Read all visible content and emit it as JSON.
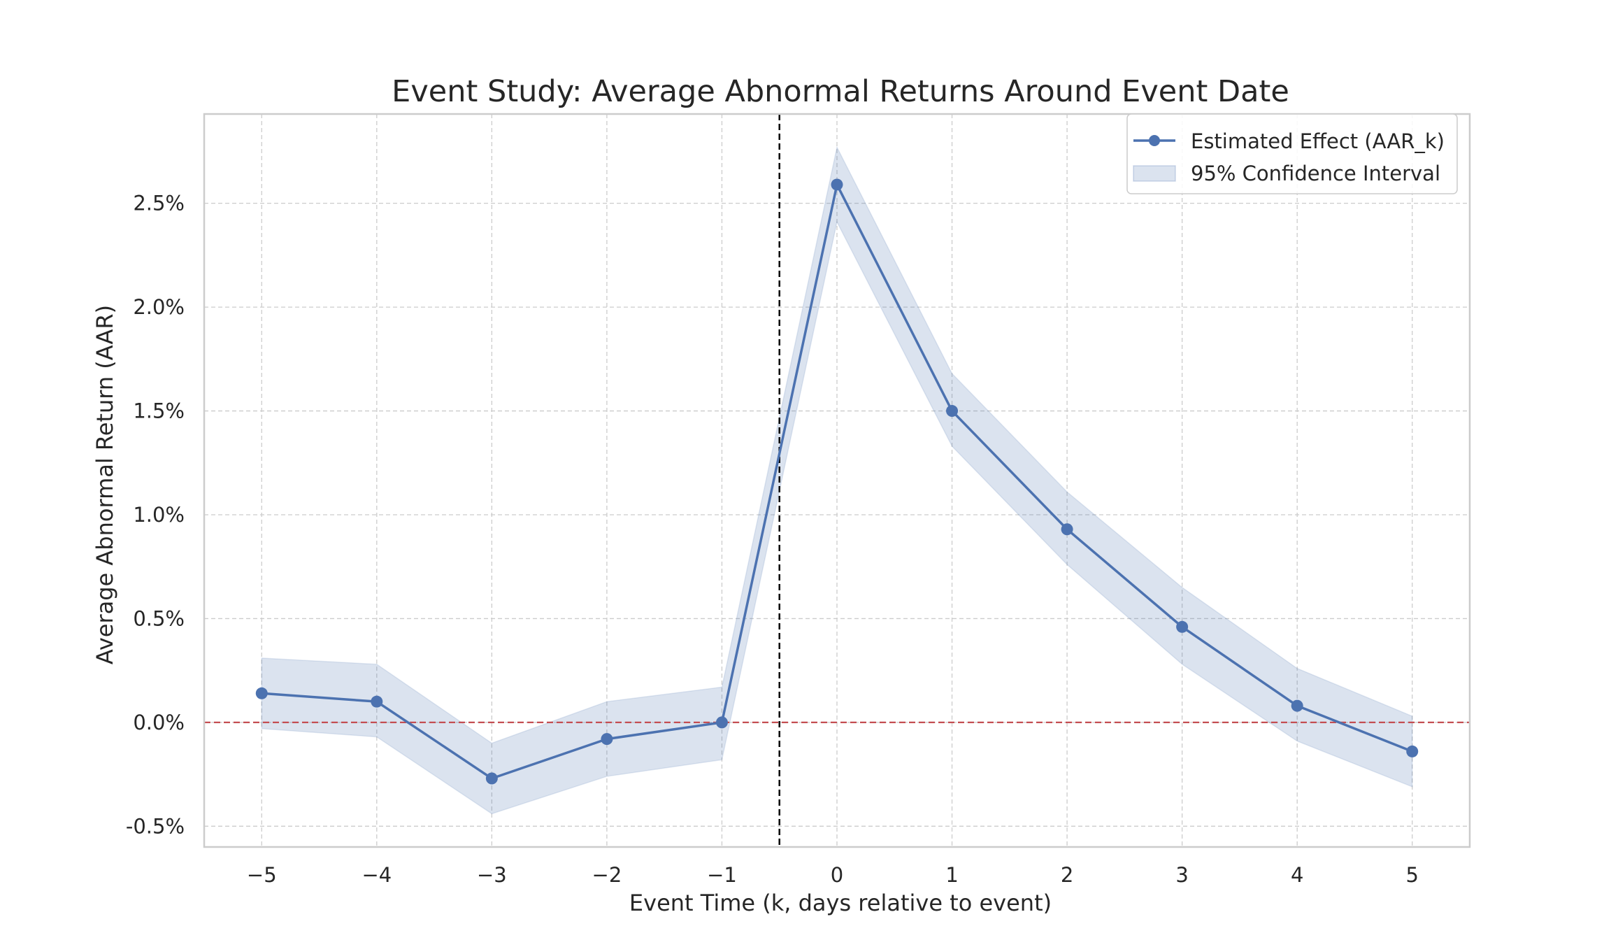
{
  "chart_data": {
    "type": "line",
    "title": "Event Study: Average Abnormal Returns Around Event Date",
    "xlabel": "Event Time (k, days relative to event)",
    "ylabel": "Average Abnormal Return (AAR)",
    "x": [
      -5,
      -4,
      -3,
      -2,
      -1,
      0,
      1,
      2,
      3,
      4,
      5
    ],
    "x_tick_labels": [
      "−5",
      "−4",
      "−3",
      "−2",
      "−1",
      "0",
      "1",
      "2",
      "3",
      "4",
      "5"
    ],
    "y_ticks": [
      -0.5,
      0.0,
      0.5,
      1.0,
      1.5,
      2.0,
      2.5
    ],
    "y_tick_labels": [
      "-0.5%",
      "0.0%",
      "0.5%",
      "1.0%",
      "1.5%",
      "2.0%",
      "2.5%"
    ],
    "xlim": [
      -5.5,
      5.5
    ],
    "ylim": [
      -0.6,
      2.93
    ],
    "y_unit": "percent",
    "series": [
      {
        "name": "Estimated Effect (AAR_k)",
        "values": [
          0.14,
          0.1,
          -0.27,
          -0.08,
          0.0,
          2.59,
          1.5,
          0.93,
          0.46,
          0.08,
          -0.14
        ],
        "color": "#4c72b0",
        "marker": "circle"
      }
    ],
    "confidence_band": {
      "name": "95% Confidence Interval",
      "lower": [
        -0.03,
        -0.07,
        -0.44,
        -0.26,
        -0.18,
        2.41,
        1.33,
        0.76,
        0.28,
        -0.09,
        -0.31
      ],
      "upper": [
        0.31,
        0.28,
        -0.1,
        0.1,
        0.17,
        2.77,
        1.68,
        1.11,
        0.65,
        0.26,
        0.03
      ],
      "color": "#4c72b0",
      "opacity": 0.2
    },
    "reference_lines": [
      {
        "orientation": "horizontal",
        "value": 0.0,
        "color": "#c44e52",
        "style": "dashed"
      },
      {
        "orientation": "vertical",
        "value": -0.5,
        "color": "#000000",
        "style": "dashed"
      }
    ],
    "grid": true,
    "legend_position": "top-right"
  }
}
